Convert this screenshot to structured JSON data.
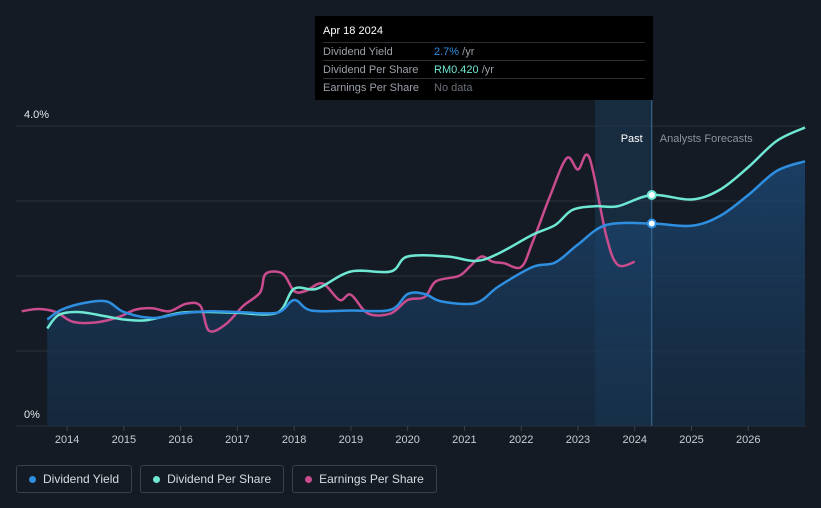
{
  "tooltip": {
    "date": "Apr 18 2024",
    "rows": [
      {
        "label": "Dividend Yield",
        "value": "2.7%",
        "unit": "/yr"
      },
      {
        "label": "Dividend Per Share",
        "value": "RM0.420",
        "unit": "/yr"
      },
      {
        "label": "Earnings Per Share",
        "value": "No data",
        "unit": ""
      }
    ]
  },
  "legend": {
    "items": [
      {
        "label": "Dividend Yield",
        "color": "#2e8fe0"
      },
      {
        "label": "Dividend Per Share",
        "color": "#6ee7d3"
      },
      {
        "label": "Earnings Per Share",
        "color": "#c94c8e"
      }
    ]
  },
  "chart_data": {
    "type": "line",
    "title": "",
    "y_top_label": "4.0%",
    "y_bottom_label": "0%",
    "ylim": [
      0,
      4.0
    ],
    "xlim": [
      2013.1,
      2027.0
    ],
    "x_ticks": [
      "2014",
      "2015",
      "2016",
      "2017",
      "2018",
      "2019",
      "2020",
      "2021",
      "2022",
      "2023",
      "2024",
      "2025",
      "2026"
    ],
    "x_tick_values": [
      2014,
      2015,
      2016,
      2017,
      2018,
      2019,
      2020,
      2021,
      2022,
      2023,
      2024,
      2025,
      2026
    ],
    "past_label": "Past",
    "forecast_label": "Analysts Forecasts",
    "past_region": [
      2023.3,
      2024.3
    ],
    "marker_x": 2024.3,
    "series": [
      {
        "name": "Dividend Yield",
        "color": "#2e8fe0",
        "filled": true,
        "points": [
          [
            2013.65,
            1.42
          ],
          [
            2013.9,
            1.55
          ],
          [
            2014.3,
            1.64
          ],
          [
            2014.7,
            1.66
          ],
          [
            2015.0,
            1.52
          ],
          [
            2015.5,
            1.44
          ],
          [
            2016.0,
            1.5
          ],
          [
            2016.5,
            1.53
          ],
          [
            2017.0,
            1.52
          ],
          [
            2017.7,
            1.51
          ],
          [
            2018.0,
            1.68
          ],
          [
            2018.3,
            1.54
          ],
          [
            2019.0,
            1.54
          ],
          [
            2019.7,
            1.55
          ],
          [
            2020.0,
            1.76
          ],
          [
            2020.3,
            1.76
          ],
          [
            2020.6,
            1.66
          ],
          [
            2021.2,
            1.64
          ],
          [
            2021.6,
            1.86
          ],
          [
            2022.2,
            2.12
          ],
          [
            2022.6,
            2.18
          ],
          [
            2023.0,
            2.42
          ],
          [
            2023.5,
            2.68
          ],
          [
            2024.3,
            2.7
          ],
          [
            2025.0,
            2.67
          ],
          [
            2025.5,
            2.8
          ],
          [
            2026.0,
            3.08
          ],
          [
            2026.5,
            3.4
          ],
          [
            2027.0,
            3.53
          ]
        ]
      },
      {
        "name": "Dividend Per Share",
        "color": "#6ee7d3",
        "filled": false,
        "points": [
          [
            2013.65,
            1.3
          ],
          [
            2013.85,
            1.48
          ],
          [
            2014.2,
            1.52
          ],
          [
            2014.7,
            1.46
          ],
          [
            2015.0,
            1.42
          ],
          [
            2015.4,
            1.41
          ],
          [
            2016.0,
            1.51
          ],
          [
            2016.5,
            1.52
          ],
          [
            2017.0,
            1.51
          ],
          [
            2017.7,
            1.51
          ],
          [
            2018.0,
            1.83
          ],
          [
            2018.4,
            1.83
          ],
          [
            2019.0,
            2.06
          ],
          [
            2019.7,
            2.06
          ],
          [
            2020.0,
            2.26
          ],
          [
            2020.7,
            2.26
          ],
          [
            2021.2,
            2.2
          ],
          [
            2021.6,
            2.3
          ],
          [
            2022.2,
            2.55
          ],
          [
            2022.6,
            2.68
          ],
          [
            2022.9,
            2.88
          ],
          [
            2023.3,
            2.93
          ],
          [
            2023.7,
            2.93
          ],
          [
            2024.3,
            3.08
          ],
          [
            2025.0,
            3.02
          ],
          [
            2025.5,
            3.15
          ],
          [
            2026.0,
            3.45
          ],
          [
            2026.5,
            3.8
          ],
          [
            2027.0,
            3.98
          ]
        ]
      },
      {
        "name": "Earnings Per Share",
        "color": "#c94c8e",
        "filled": false,
        "points": [
          [
            2013.2,
            1.53
          ],
          [
            2013.5,
            1.56
          ],
          [
            2013.8,
            1.52
          ],
          [
            2014.1,
            1.39
          ],
          [
            2014.5,
            1.38
          ],
          [
            2014.9,
            1.45
          ],
          [
            2015.2,
            1.55
          ],
          [
            2015.5,
            1.57
          ],
          [
            2015.8,
            1.53
          ],
          [
            2016.1,
            1.63
          ],
          [
            2016.35,
            1.6
          ],
          [
            2016.5,
            1.27
          ],
          [
            2016.8,
            1.36
          ],
          [
            2017.1,
            1.6
          ],
          [
            2017.4,
            1.78
          ],
          [
            2017.5,
            2.03
          ],
          [
            2017.8,
            2.03
          ],
          [
            2018.0,
            1.8
          ],
          [
            2018.2,
            1.8
          ],
          [
            2018.5,
            1.9
          ],
          [
            2018.8,
            1.68
          ],
          [
            2019.0,
            1.75
          ],
          [
            2019.3,
            1.5
          ],
          [
            2019.7,
            1.5
          ],
          [
            2020.0,
            1.68
          ],
          [
            2020.3,
            1.72
          ],
          [
            2020.5,
            1.93
          ],
          [
            2020.9,
            2.0
          ],
          [
            2021.1,
            2.13
          ],
          [
            2021.3,
            2.26
          ],
          [
            2021.5,
            2.19
          ],
          [
            2021.7,
            2.17
          ],
          [
            2022.0,
            2.12
          ],
          [
            2022.2,
            2.45
          ],
          [
            2022.5,
            3.05
          ],
          [
            2022.8,
            3.57
          ],
          [
            2023.0,
            3.42
          ],
          [
            2023.2,
            3.58
          ],
          [
            2023.5,
            2.53
          ],
          [
            2023.7,
            2.15
          ],
          [
            2024.0,
            2.19
          ]
        ]
      }
    ]
  }
}
